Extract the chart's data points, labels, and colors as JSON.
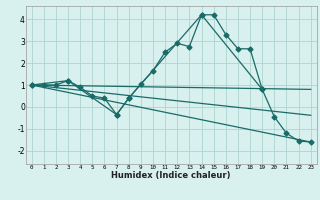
{
  "title": "",
  "xlabel": "Humidex (Indice chaleur)",
  "xlim": [
    -0.5,
    23.5
  ],
  "ylim": [
    -2.6,
    4.6
  ],
  "yticks": [
    -2,
    -1,
    0,
    1,
    2,
    3,
    4
  ],
  "xticks": [
    0,
    1,
    2,
    3,
    4,
    5,
    6,
    7,
    8,
    9,
    10,
    11,
    12,
    13,
    14,
    15,
    16,
    17,
    18,
    19,
    20,
    21,
    22,
    23
  ],
  "background_color": "#d8f0ee",
  "grid_color": "#aed4cf",
  "line_color": "#1a6b68",
  "line1_x": [
    0,
    1,
    2,
    3,
    4,
    5,
    6,
    7,
    8,
    9,
    10,
    11,
    12,
    13,
    14,
    15,
    16,
    17,
    18,
    19,
    20,
    21,
    22,
    23
  ],
  "line1_y": [
    1.0,
    1.0,
    1.0,
    1.2,
    0.9,
    0.5,
    0.4,
    -0.35,
    0.4,
    1.05,
    1.65,
    2.5,
    2.9,
    2.75,
    4.2,
    4.2,
    3.3,
    2.65,
    2.65,
    0.8,
    -0.45,
    -1.2,
    -1.55,
    -1.6
  ],
  "line2_x": [
    0,
    3,
    7,
    8,
    14,
    19
  ],
  "line2_y": [
    1.0,
    1.2,
    -0.35,
    0.4,
    4.2,
    0.8
  ],
  "line3_x": [
    0,
    23
  ],
  "line3_y": [
    1.0,
    0.8
  ],
  "line4_x": [
    0,
    23
  ],
  "line4_y": [
    1.0,
    -1.6
  ],
  "line5_x": [
    0,
    23
  ],
  "line5_y": [
    1.0,
    -0.38
  ]
}
